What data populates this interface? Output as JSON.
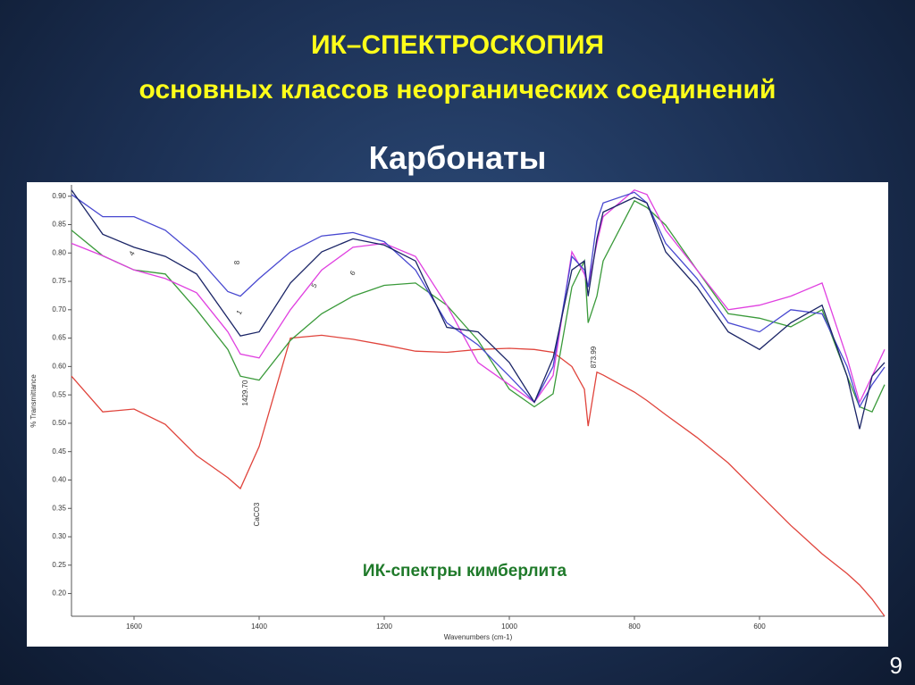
{
  "slide": {
    "title": "ИК–СПЕКТРОСКОПИЯ",
    "subtitle": "основных классов неорганических соединений",
    "heading": "Карбонаты",
    "page_number": "9"
  },
  "chart_data": {
    "type": "line",
    "x_label": "Wavenumbers (cm-1)",
    "y_label": "% Transmittance",
    "caption": "ИК-спектры кимберлита",
    "xlim": [
      1700,
      400
    ],
    "ylim": [
      0.16,
      0.92
    ],
    "xticks": [
      1600,
      1400,
      1200,
      1000,
      800,
      600
    ],
    "yticks": [
      {
        "value": 0.2,
        "label": "0.20"
      },
      {
        "value": 0.25,
        "label": "0.25"
      },
      {
        "value": 0.3,
        "label": "0.30"
      },
      {
        "value": 0.35,
        "label": "0.35"
      },
      {
        "value": 0.4,
        "label": "0.40"
      },
      {
        "value": 0.45,
        "label": "0.45"
      },
      {
        "value": 0.5,
        "label": "0.50"
      },
      {
        "value": 0.55,
        "label": "0.55"
      },
      {
        "value": 0.6,
        "label": "0.60"
      },
      {
        "value": 0.65,
        "label": "0.65"
      },
      {
        "value": 0.7,
        "label": "0.70"
      },
      {
        "value": 0.75,
        "label": "0.75"
      },
      {
        "value": 0.8,
        "label": "0.80"
      },
      {
        "value": 0.85,
        "label": "0.85"
      },
      {
        "value": 0.9,
        "label": "0.90"
      }
    ],
    "annotations": [
      "1429.70",
      "873.99",
      "CaCO3",
      "1",
      "4",
      "5",
      "6",
      "8"
    ],
    "x": [
      1700,
      1650,
      1600,
      1550,
      1500,
      1450,
      1430,
      1400,
      1350,
      1300,
      1250,
      1200,
      1150,
      1100,
      1050,
      1000,
      960,
      930,
      900,
      880,
      874,
      860,
      850,
      800,
      780,
      750,
      700,
      650,
      600,
      550,
      500,
      460,
      440,
      420,
      400
    ],
    "series": [
      {
        "color": "#e0443c",
        "values": [
          0.583,
          0.52,
          0.525,
          0.498,
          0.443,
          0.404,
          0.385,
          0.459,
          0.65,
          0.655,
          0.648,
          0.638,
          0.627,
          0.625,
          0.63,
          0.632,
          0.63,
          0.625,
          0.6,
          0.56,
          0.495,
          0.59,
          0.585,
          0.555,
          0.54,
          0.515,
          0.475,
          0.43,
          0.375,
          0.32,
          0.27,
          0.235,
          0.215,
          0.19,
          0.16
        ]
      },
      {
        "color": "#3a9a3a",
        "values": [
          0.84,
          0.795,
          0.77,
          0.763,
          0.7,
          0.63,
          0.583,
          0.576,
          0.646,
          0.693,
          0.724,
          0.743,
          0.747,
          0.708,
          0.646,
          0.56,
          0.529,
          0.552,
          0.74,
          0.786,
          0.677,
          0.724,
          0.786,
          0.892,
          0.88,
          0.849,
          0.77,
          0.693,
          0.685,
          0.67,
          0.7,
          0.583,
          0.529,
          0.52,
          0.568
        ]
      },
      {
        "color": "#e040e0",
        "values": [
          0.817,
          0.795,
          0.77,
          0.755,
          0.73,
          0.661,
          0.622,
          0.615,
          0.7,
          0.77,
          0.81,
          0.817,
          0.794,
          0.708,
          0.607,
          0.568,
          0.537,
          0.584,
          0.802,
          0.763,
          0.74,
          0.817,
          0.864,
          0.911,
          0.903,
          0.84,
          0.77,
          0.7,
          0.708,
          0.724,
          0.747,
          0.615,
          0.537,
          0.583,
          0.63
        ]
      },
      {
        "color": "#4848d0",
        "values": [
          0.903,
          0.864,
          0.864,
          0.84,
          0.794,
          0.732,
          0.724,
          0.755,
          0.802,
          0.83,
          0.836,
          0.82,
          0.77,
          0.677,
          0.638,
          0.583,
          0.537,
          0.6,
          0.794,
          0.77,
          0.74,
          0.856,
          0.888,
          0.907,
          0.888,
          0.817,
          0.755,
          0.677,
          0.661,
          0.7,
          0.693,
          0.6,
          0.529,
          0.568,
          0.599
        ]
      },
      {
        "color": "#1a2466",
        "values": [
          0.911,
          0.833,
          0.81,
          0.794,
          0.763,
          0.685,
          0.654,
          0.661,
          0.747,
          0.802,
          0.825,
          0.814,
          0.786,
          0.669,
          0.661,
          0.607,
          0.537,
          0.615,
          0.77,
          0.786,
          0.724,
          0.825,
          0.872,
          0.898,
          0.888,
          0.802,
          0.74,
          0.661,
          0.63,
          0.677,
          0.708,
          0.583,
          0.49,
          0.583,
          0.607
        ]
      }
    ]
  }
}
